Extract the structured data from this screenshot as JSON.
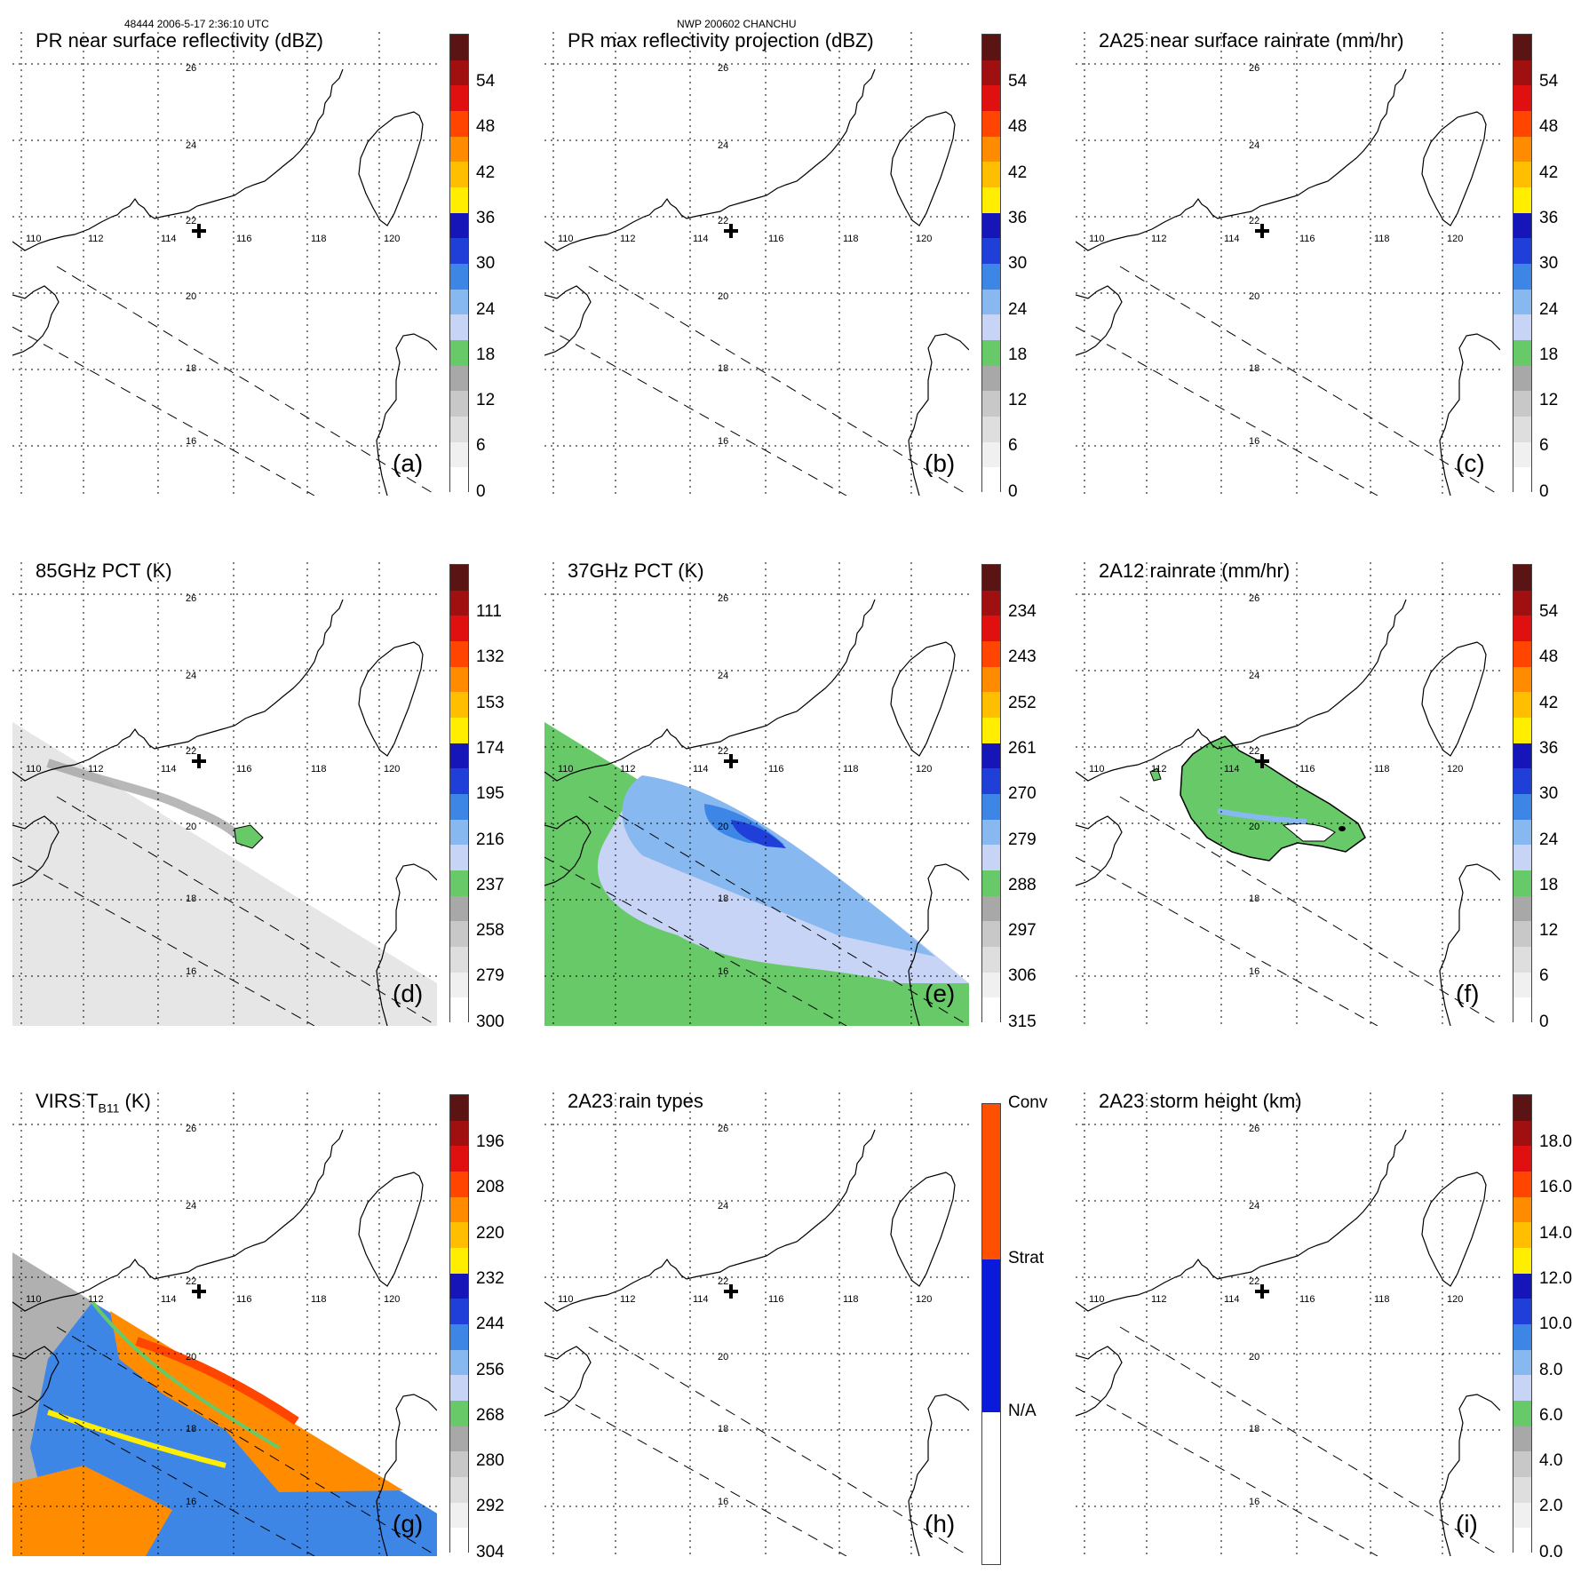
{
  "header": {
    "orbit_info": "48444 2006-5-17 2:36:10 UTC",
    "storm_info": "NWP 200602 CHANCHU"
  },
  "map": {
    "lon_labels": [
      "110",
      "112",
      "114",
      "116",
      "118",
      "120"
    ],
    "lat_labels": [
      "26",
      "24",
      "22",
      "20",
      "18",
      "16"
    ],
    "storm_center_marker": "plus-icon"
  },
  "colors": {
    "precip_scale": [
      "#ffffff",
      "#f0f0f0",
      "#dedede",
      "#c8c8c8",
      "#a8a8a8",
      "#68c968",
      "#c7d4f5",
      "#87b8f0",
      "#3e86e6",
      "#1f3fd8",
      "#1515b8",
      "#ffee00",
      "#ffbf00",
      "#ff8c00",
      "#ff4500",
      "#e01010",
      "#a01010",
      "#5a1414"
    ],
    "rain_types": [
      "#ffffff",
      "#0a1adb",
      "#ff5000"
    ]
  },
  "panels": [
    {
      "id": "a",
      "title": "PR near surface reflectivity (dBZ)",
      "label": "(a)",
      "ticks": [
        "54",
        "48",
        "42",
        "36",
        "30",
        "24",
        "18",
        "12",
        "6",
        "0"
      ]
    },
    {
      "id": "b",
      "title": "PR max reflectivity projection (dBZ)",
      "label": "(b)",
      "ticks": [
        "54",
        "48",
        "42",
        "36",
        "30",
        "24",
        "18",
        "12",
        "6",
        "0"
      ]
    },
    {
      "id": "c",
      "title": "2A25 near surface rainrate (mm/hr)",
      "label": "(c)",
      "ticks": [
        "54",
        "48",
        "42",
        "36",
        "30",
        "24",
        "18",
        "12",
        "6",
        "0"
      ]
    },
    {
      "id": "d",
      "title": "85GHz PCT (K)",
      "label": "(d)",
      "ticks": [
        "111",
        "132",
        "153",
        "174",
        "195",
        "216",
        "237",
        "258",
        "279",
        "300"
      ]
    },
    {
      "id": "e",
      "title": "37GHz PCT (K)",
      "label": "(e)",
      "ticks": [
        "234",
        "243",
        "252",
        "261",
        "270",
        "279",
        "288",
        "297",
        "306",
        "315"
      ]
    },
    {
      "id": "f",
      "title": "2A12 rainrate (mm/hr)",
      "label": "(f)",
      "ticks": [
        "54",
        "48",
        "42",
        "36",
        "30",
        "24",
        "18",
        "12",
        "6",
        "0"
      ]
    },
    {
      "id": "g",
      "title": "VIRS T",
      "title_sub": "B11",
      "title_after": " (K)",
      "label": "(g)",
      "ticks": [
        "196",
        "208",
        "220",
        "232",
        "244",
        "256",
        "268",
        "280",
        "292",
        "304"
      ]
    },
    {
      "id": "h",
      "title": "2A23 rain types",
      "label": "(h)",
      "ticks": [
        "Conv",
        "Strat",
        "N/A"
      ]
    },
    {
      "id": "i",
      "title": "2A23 storm height (km)",
      "label": "(i)",
      "ticks": [
        "18.0",
        "16.0",
        "14.0",
        "12.0",
        "10.0",
        "8.0",
        "6.0",
        "4.0",
        "2.0",
        "0.0"
      ]
    }
  ]
}
